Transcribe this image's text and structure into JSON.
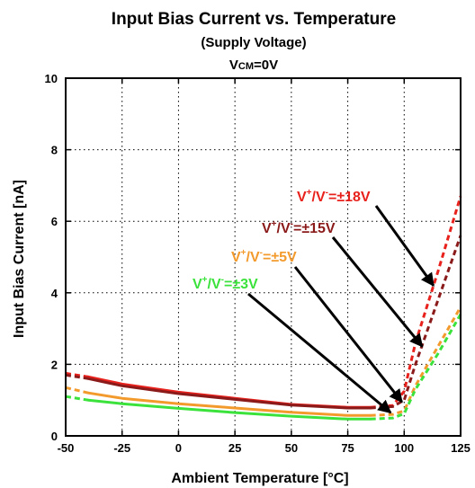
{
  "chart_data": {
    "type": "line",
    "title": "Input Bias Current vs. Temperature",
    "subtitle": "(Supply Voltage)",
    "condition": {
      "prefix": "V",
      "sub": "CM",
      "suffix": "=0V"
    },
    "xlabel": "Ambient Temperature [°C]",
    "ylabel": "Input Bias Current [nA]",
    "xlim": [
      -50,
      125
    ],
    "ylim": [
      0,
      10
    ],
    "xticks": [
      "-50",
      "-25",
      "0",
      "25",
      "50",
      "75",
      "100",
      "125"
    ],
    "yticks": [
      "0",
      "2",
      "4",
      "6",
      "8",
      "10"
    ],
    "grid": "dotted",
    "series": [
      {
        "name": "V+/V-=±18V",
        "color": "#e8211c",
        "solid": [
          [
            -40,
            1.65
          ],
          [
            -25,
            1.45
          ],
          [
            0,
            1.22
          ],
          [
            25,
            1.05
          ],
          [
            50,
            0.88
          ],
          [
            75,
            0.8
          ],
          [
            85,
            0.8
          ]
        ],
        "dashed": [
          [
            -50,
            1.75
          ],
          [
            -40,
            1.65
          ],
          [
            85,
            0.8
          ],
          [
            95,
            0.85
          ],
          [
            100,
            1.25
          ],
          [
            105,
            2.6
          ],
          [
            115,
            4.6
          ],
          [
            125,
            6.7
          ]
        ]
      },
      {
        "name": "V+/V-=±15V",
        "color": "#8b1a1a",
        "solid": [
          [
            -40,
            1.6
          ],
          [
            -25,
            1.4
          ],
          [
            0,
            1.18
          ],
          [
            25,
            1.02
          ],
          [
            50,
            0.86
          ],
          [
            75,
            0.78
          ],
          [
            85,
            0.78
          ]
        ],
        "dashed": [
          [
            -50,
            1.7
          ],
          [
            -40,
            1.6
          ],
          [
            85,
            0.78
          ],
          [
            95,
            0.82
          ],
          [
            100,
            1.0
          ],
          [
            105,
            2.0
          ],
          [
            115,
            3.8
          ],
          [
            125,
            5.6
          ]
        ]
      },
      {
        "name": "V+/V-=±5V",
        "color": "#f39a2d",
        "solid": [
          [
            -40,
            1.2
          ],
          [
            -25,
            1.05
          ],
          [
            0,
            0.9
          ],
          [
            25,
            0.78
          ],
          [
            50,
            0.66
          ],
          [
            75,
            0.57
          ],
          [
            85,
            0.57
          ]
        ],
        "dashed": [
          [
            -50,
            1.35
          ],
          [
            -40,
            1.2
          ],
          [
            85,
            0.57
          ],
          [
            95,
            0.6
          ],
          [
            100,
            0.7
          ],
          [
            105,
            1.4
          ],
          [
            115,
            2.5
          ],
          [
            125,
            3.6
          ]
        ]
      },
      {
        "name": "V+/V-=±3V",
        "color": "#3be23b",
        "solid": [
          [
            -40,
            1.0
          ],
          [
            -25,
            0.9
          ],
          [
            0,
            0.77
          ],
          [
            25,
            0.65
          ],
          [
            50,
            0.55
          ],
          [
            75,
            0.47
          ],
          [
            85,
            0.47
          ]
        ],
        "dashed": [
          [
            -50,
            1.1
          ],
          [
            -40,
            1.0
          ],
          [
            85,
            0.47
          ],
          [
            95,
            0.5
          ],
          [
            100,
            0.62
          ],
          [
            105,
            1.3
          ],
          [
            115,
            2.3
          ],
          [
            125,
            3.4
          ]
        ]
      }
    ],
    "annotations": [
      {
        "series": "V+/V-=±18V",
        "color": "#e8211c",
        "parts": [
          "V",
          "+",
          "/V",
          "-",
          "=±18V"
        ],
        "arrow_to": [
          113,
          4.2
        ]
      },
      {
        "series": "V+/V-=±15V",
        "color": "#8b1a1a",
        "parts": [
          "V",
          "+",
          "/V",
          "-",
          "=±15V"
        ],
        "arrow_to": [
          108,
          2.5
        ]
      },
      {
        "series": "V+/V-=±5V",
        "color": "#f39a2d",
        "parts": [
          "V",
          "+",
          "/V",
          "-",
          "=±5V"
        ],
        "arrow_to": [
          99,
          0.95
        ]
      },
      {
        "series": "V+/V-=±3V",
        "color": "#3be23b",
        "parts": [
          "V",
          "+",
          "/V",
          "-",
          "=±3V"
        ],
        "arrow_to": [
          94,
          0.65
        ]
      }
    ]
  }
}
